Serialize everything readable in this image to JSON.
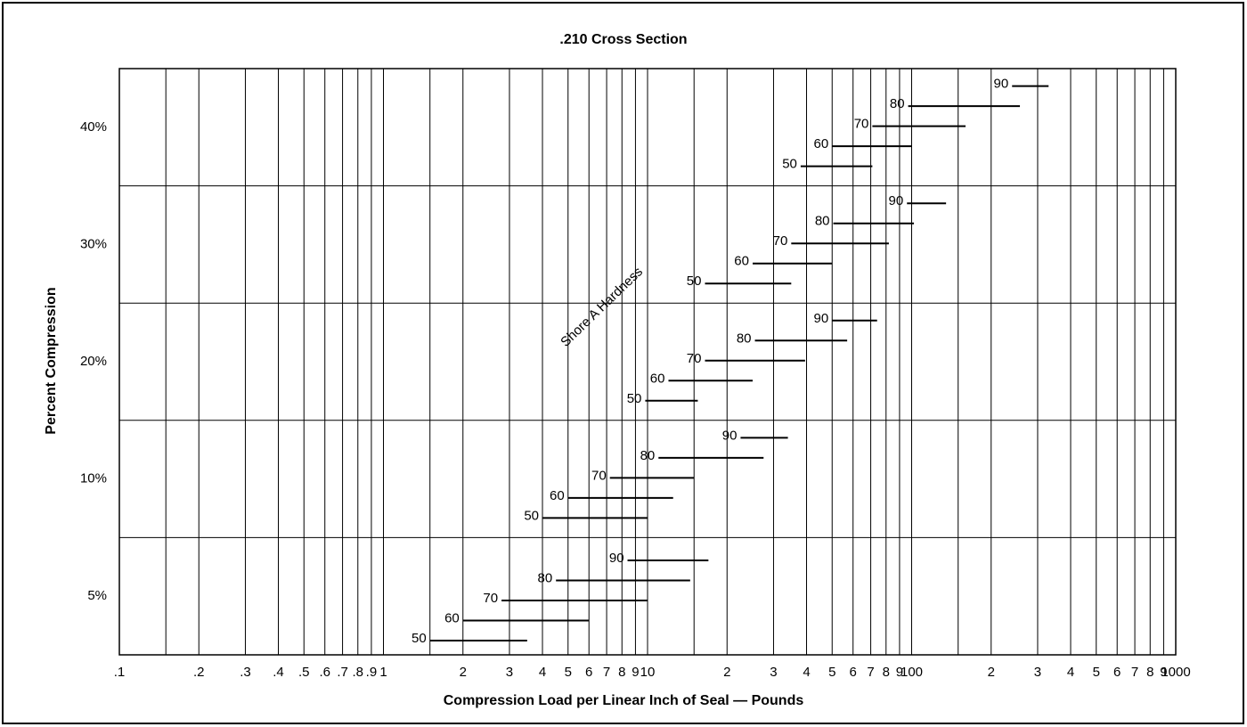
{
  "chart_data": {
    "type": "range-bar",
    "title": ".210 Cross Section",
    "x_label": "Compression Load per Linear Inch of Seal — Pounds",
    "y_label": "Percent Compression",
    "annotation": "Shore A Hardness",
    "x_log": true,
    "color": "#000000",
    "xlim": [
      0.1,
      1000
    ],
    "xticks": [
      {
        "value": 0.1,
        "label": ".1"
      },
      {
        "value": 0.2,
        "label": ".2"
      },
      {
        "value": 0.3,
        "label": ".3"
      },
      {
        "value": 0.4,
        "label": ".4"
      },
      {
        "value": 0.5,
        "label": ".5"
      },
      {
        "value": 0.6,
        "label": ".6"
      },
      {
        "value": 0.7,
        "label": ".7"
      },
      {
        "value": 0.8,
        "label": ".8"
      },
      {
        "value": 0.9,
        "label": ".9"
      },
      1,
      2,
      3,
      4,
      5,
      6,
      7,
      8,
      9,
      10,
      {
        "value": 20,
        "label": "2"
      },
      {
        "value": 30,
        "label": "3"
      },
      {
        "value": 40,
        "label": "4"
      },
      {
        "value": 50,
        "label": "5"
      },
      {
        "value": 60,
        "label": "6"
      },
      {
        "value": 70,
        "label": "7"
      },
      {
        "value": 80,
        "label": "8"
      },
      {
        "value": 90,
        "label": "9"
      },
      100,
      {
        "value": 200,
        "label": "2"
      },
      {
        "value": 300,
        "label": "3"
      },
      {
        "value": 400,
        "label": "4"
      },
      {
        "value": 500,
        "label": "5"
      },
      {
        "value": 600,
        "label": "6"
      },
      {
        "value": 700,
        "label": "7"
      },
      {
        "value": 800,
        "label": "8"
      },
      {
        "value": 900,
        "label": "9"
      },
      1000
    ],
    "x_minor_grid": [
      0.15,
      1.5,
      15,
      150
    ],
    "grid": true,
    "bands": [
      {
        "name": "5%",
        "bars": [
          {
            "label": "50",
            "min": 1.5,
            "max": 3.5
          },
          {
            "label": "60",
            "min": 2,
            "max": 6
          },
          {
            "label": "70",
            "min": 2.8,
            "max": 10
          },
          {
            "label": "80",
            "min": 4.5,
            "max": 14.5
          },
          {
            "label": "90",
            "min": 8.4,
            "max": 17
          }
        ]
      },
      {
        "name": "10%",
        "bars": [
          {
            "label": "50",
            "min": 4,
            "max": 10
          },
          {
            "label": "60",
            "min": 5,
            "max": 12.5
          },
          {
            "label": "70",
            "min": 7.2,
            "max": 15
          },
          {
            "label": "80",
            "min": 11,
            "max": 27.5
          },
          {
            "label": "90",
            "min": 22.5,
            "max": 34
          }
        ]
      },
      {
        "name": "20%",
        "bars": [
          {
            "label": "50",
            "min": 9.8,
            "max": 15.5
          },
          {
            "label": "60",
            "min": 12,
            "max": 25
          },
          {
            "label": "70",
            "min": 16.5,
            "max": 39.5
          },
          {
            "label": "80",
            "min": 25.5,
            "max": 57
          },
          {
            "label": "90",
            "min": 50,
            "max": 74
          }
        ]
      },
      {
        "name": "30%",
        "bars": [
          {
            "label": "50",
            "min": 16.5,
            "max": 35
          },
          {
            "label": "60",
            "min": 25,
            "max": 50
          },
          {
            "label": "70",
            "min": 35,
            "max": 82
          },
          {
            "label": "80",
            "min": 50.5,
            "max": 102
          },
          {
            "label": "90",
            "min": 96,
            "max": 135
          }
        ]
      },
      {
        "name": "40%",
        "bars": [
          {
            "label": "50",
            "min": 38,
            "max": 71
          },
          {
            "label": "60",
            "min": 50,
            "max": 100
          },
          {
            "label": "70",
            "min": 71,
            "max": 160
          },
          {
            "label": "80",
            "min": 97,
            "max": 257
          },
          {
            "label": "90",
            "min": 240,
            "max": 330
          }
        ]
      }
    ]
  }
}
